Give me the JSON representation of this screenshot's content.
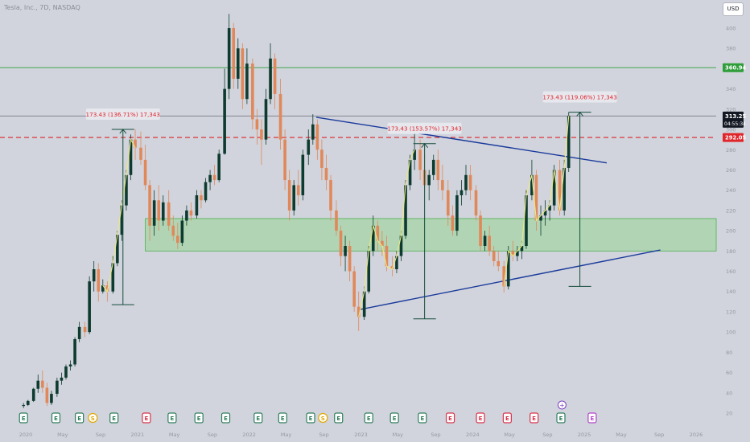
{
  "header": {
    "symbol_title": "Tesla, Inc., 7D, NASDAQ",
    "currency_label": "USD"
  },
  "chart_data": {
    "type": "candlestick",
    "title": "Tesla, Inc., 7D, NASDAQ",
    "currency": "USD",
    "ylim": [
      20,
      420
    ],
    "y_ticks": [
      20,
      40,
      60,
      80,
      100,
      120,
      140,
      160,
      180,
      200,
      220,
      240,
      260,
      280,
      300,
      320,
      340,
      360,
      380,
      400
    ],
    "x_labels": [
      "2020",
      "May",
      "Sep",
      "2021",
      "May",
      "Sep",
      "2022",
      "May",
      "Sep",
      "2023",
      "May",
      "Sep",
      "2024",
      "May",
      "Sep",
      "2025",
      "May",
      "Sep",
      "2026"
    ],
    "x_label_times": [
      2020.0,
      2020.33,
      2020.67,
      2021.0,
      2021.33,
      2021.67,
      2022.0,
      2022.33,
      2022.67,
      2023.0,
      2023.33,
      2023.67,
      2024.0,
      2024.33,
      2024.67,
      2025.0,
      2025.33,
      2025.67,
      2026.0
    ],
    "grid": false,
    "price_markers": [
      {
        "label": "360.94",
        "value": 360.94,
        "color": "#2e9d3a"
      },
      {
        "label": "313.25",
        "value": 313.25,
        "color": "#131722"
      },
      {
        "label": "292.05",
        "value": 292.05,
        "color": "#e0252b"
      }
    ],
    "countdown": "04:55:34",
    "reference_lines": [
      {
        "name": "resistance",
        "value": 360.94,
        "color": "#2e9d3a",
        "style": "solid"
      },
      {
        "name": "current",
        "value": 313.25,
        "color": "#787b86",
        "style": "solid"
      },
      {
        "name": "breakout",
        "value": 292.05,
        "color": "#e0252b",
        "style": "dashed"
      }
    ],
    "support_zone": {
      "from": 180,
      "to": 212,
      "color": "#a5d6a7"
    },
    "trendlines": [
      {
        "name": "upper",
        "points": [
          [
            2022.6,
            312
          ],
          [
            2025.2,
            267
          ]
        ],
        "color": "#1a3a9c"
      },
      {
        "name": "lower",
        "points": [
          [
            2022.98,
            122
          ],
          [
            2025.68,
            181
          ]
        ],
        "color": "#1a3a9c"
      }
    ],
    "measurements": [
      {
        "label": "173.43 (136.71%) 17,343",
        "x": 2020.87,
        "from": 127,
        "to": 300
      },
      {
        "label": "173.43 (153.57%) 17,343",
        "x": 2023.57,
        "from": 113,
        "to": 286
      },
      {
        "label": "173.43 (119.06%) 17,343",
        "x": 2024.96,
        "from": 145,
        "to": 317
      }
    ],
    "candles": [
      {
        "t": 2019.98,
        "o": 27,
        "h": 30,
        "l": 25,
        "c": 28
      },
      {
        "t": 2020.02,
        "o": 28,
        "h": 33,
        "l": 27,
        "c": 32
      },
      {
        "t": 2020.07,
        "o": 32,
        "h": 45,
        "l": 31,
        "c": 44
      },
      {
        "t": 2020.11,
        "o": 44,
        "h": 58,
        "l": 40,
        "c": 52
      },
      {
        "t": 2020.15,
        "o": 52,
        "h": 62,
        "l": 40,
        "c": 45
      },
      {
        "t": 2020.19,
        "o": 45,
        "h": 50,
        "l": 27,
        "c": 30
      },
      {
        "t": 2020.23,
        "o": 30,
        "h": 42,
        "l": 28,
        "c": 39
      },
      {
        "t": 2020.28,
        "o": 39,
        "h": 55,
        "l": 36,
        "c": 52
      },
      {
        "t": 2020.32,
        "o": 52,
        "h": 60,
        "l": 48,
        "c": 55
      },
      {
        "t": 2020.36,
        "o": 55,
        "h": 68,
        "l": 53,
        "c": 66
      },
      {
        "t": 2020.4,
        "o": 66,
        "h": 72,
        "l": 62,
        "c": 68
      },
      {
        "t": 2020.44,
        "o": 68,
        "h": 95,
        "l": 66,
        "c": 93
      },
      {
        "t": 2020.48,
        "o": 93,
        "h": 110,
        "l": 90,
        "c": 105
      },
      {
        "t": 2020.53,
        "o": 105,
        "h": 110,
        "l": 95,
        "c": 100
      },
      {
        "t": 2020.57,
        "o": 100,
        "h": 155,
        "l": 98,
        "c": 150
      },
      {
        "t": 2020.61,
        "o": 150,
        "h": 170,
        "l": 140,
        "c": 162
      },
      {
        "t": 2020.65,
        "o": 162,
        "h": 168,
        "l": 130,
        "c": 140
      },
      {
        "t": 2020.69,
        "o": 140,
        "h": 152,
        "l": 138,
        "c": 146
      },
      {
        "t": 2020.73,
        "o": 146,
        "h": 150,
        "l": 130,
        "c": 140
      },
      {
        "t": 2020.78,
        "o": 140,
        "h": 175,
        "l": 138,
        "c": 168
      },
      {
        "t": 2020.82,
        "o": 168,
        "h": 200,
        "l": 165,
        "c": 196
      },
      {
        "t": 2020.86,
        "o": 196,
        "h": 230,
        "l": 190,
        "c": 225
      },
      {
        "t": 2020.9,
        "o": 225,
        "h": 260,
        "l": 220,
        "c": 255
      },
      {
        "t": 2020.94,
        "o": 255,
        "h": 295,
        "l": 250,
        "c": 290
      },
      {
        "t": 2020.98,
        "o": 290,
        "h": 300,
        "l": 270,
        "c": 282
      },
      {
        "t": 2021.03,
        "o": 282,
        "h": 298,
        "l": 265,
        "c": 270
      },
      {
        "t": 2021.07,
        "o": 270,
        "h": 285,
        "l": 240,
        "c": 245
      },
      {
        "t": 2021.11,
        "o": 245,
        "h": 250,
        "l": 190,
        "c": 205
      },
      {
        "t": 2021.15,
        "o": 205,
        "h": 240,
        "l": 195,
        "c": 230
      },
      {
        "t": 2021.19,
        "o": 230,
        "h": 245,
        "l": 200,
        "c": 210
      },
      {
        "t": 2021.23,
        "o": 210,
        "h": 235,
        "l": 205,
        "c": 228
      },
      {
        "t": 2021.28,
        "o": 228,
        "h": 240,
        "l": 200,
        "c": 205
      },
      {
        "t": 2021.32,
        "o": 205,
        "h": 215,
        "l": 190,
        "c": 195
      },
      {
        "t": 2021.36,
        "o": 195,
        "h": 208,
        "l": 182,
        "c": 188
      },
      {
        "t": 2021.4,
        "o": 188,
        "h": 215,
        "l": 185,
        "c": 210
      },
      {
        "t": 2021.44,
        "o": 210,
        "h": 225,
        "l": 205,
        "c": 220
      },
      {
        "t": 2021.48,
        "o": 220,
        "h": 228,
        "l": 210,
        "c": 215
      },
      {
        "t": 2021.53,
        "o": 215,
        "h": 240,
        "l": 212,
        "c": 235
      },
      {
        "t": 2021.57,
        "o": 235,
        "h": 240,
        "l": 222,
        "c": 230
      },
      {
        "t": 2021.61,
        "o": 230,
        "h": 252,
        "l": 228,
        "c": 248
      },
      {
        "t": 2021.65,
        "o": 248,
        "h": 260,
        "l": 240,
        "c": 255
      },
      {
        "t": 2021.69,
        "o": 255,
        "h": 265,
        "l": 245,
        "c": 250
      },
      {
        "t": 2021.73,
        "o": 250,
        "h": 280,
        "l": 248,
        "c": 276
      },
      {
        "t": 2021.78,
        "o": 276,
        "h": 360,
        "l": 275,
        "c": 340
      },
      {
        "t": 2021.82,
        "o": 340,
        "h": 414,
        "l": 330,
        "c": 400
      },
      {
        "t": 2021.86,
        "o": 400,
        "h": 405,
        "l": 340,
        "c": 350
      },
      {
        "t": 2021.9,
        "o": 350,
        "h": 390,
        "l": 340,
        "c": 380
      },
      {
        "t": 2021.94,
        "o": 380,
        "h": 385,
        "l": 320,
        "c": 330
      },
      {
        "t": 2021.98,
        "o": 330,
        "h": 380,
        "l": 325,
        "c": 365
      },
      {
        "t": 2022.03,
        "o": 365,
        "h": 370,
        "l": 300,
        "c": 310
      },
      {
        "t": 2022.07,
        "o": 310,
        "h": 320,
        "l": 285,
        "c": 300
      },
      {
        "t": 2022.11,
        "o": 300,
        "h": 310,
        "l": 265,
        "c": 290
      },
      {
        "t": 2022.15,
        "o": 290,
        "h": 340,
        "l": 285,
        "c": 330
      },
      {
        "t": 2022.19,
        "o": 330,
        "h": 385,
        "l": 325,
        "c": 370
      },
      {
        "t": 2022.23,
        "o": 370,
        "h": 375,
        "l": 320,
        "c": 335
      },
      {
        "t": 2022.28,
        "o": 335,
        "h": 350,
        "l": 280,
        "c": 290
      },
      {
        "t": 2022.32,
        "o": 290,
        "h": 300,
        "l": 240,
        "c": 250
      },
      {
        "t": 2022.36,
        "o": 250,
        "h": 260,
        "l": 210,
        "c": 220
      },
      {
        "t": 2022.4,
        "o": 220,
        "h": 250,
        "l": 215,
        "c": 245
      },
      {
        "t": 2022.44,
        "o": 245,
        "h": 260,
        "l": 225,
        "c": 235
      },
      {
        "t": 2022.48,
        "o": 235,
        "h": 280,
        "l": 230,
        "c": 275
      },
      {
        "t": 2022.53,
        "o": 275,
        "h": 300,
        "l": 265,
        "c": 290
      },
      {
        "t": 2022.57,
        "o": 290,
        "h": 315,
        "l": 285,
        "c": 305
      },
      {
        "t": 2022.61,
        "o": 305,
        "h": 310,
        "l": 270,
        "c": 280
      },
      {
        "t": 2022.65,
        "o": 280,
        "h": 290,
        "l": 250,
        "c": 262
      },
      {
        "t": 2022.69,
        "o": 262,
        "h": 275,
        "l": 240,
        "c": 250
      },
      {
        "t": 2022.73,
        "o": 250,
        "h": 255,
        "l": 210,
        "c": 220
      },
      {
        "t": 2022.78,
        "o": 220,
        "h": 230,
        "l": 195,
        "c": 200
      },
      {
        "t": 2022.82,
        "o": 200,
        "h": 205,
        "l": 165,
        "c": 175
      },
      {
        "t": 2022.86,
        "o": 175,
        "h": 195,
        "l": 160,
        "c": 185
      },
      {
        "t": 2022.9,
        "o": 185,
        "h": 190,
        "l": 150,
        "c": 160
      },
      {
        "t": 2022.94,
        "o": 160,
        "h": 165,
        "l": 120,
        "c": 125
      },
      {
        "t": 2022.98,
        "o": 125,
        "h": 140,
        "l": 101,
        "c": 115
      },
      {
        "t": 2023.03,
        "o": 115,
        "h": 145,
        "l": 112,
        "c": 140
      },
      {
        "t": 2023.07,
        "o": 140,
        "h": 185,
        "l": 138,
        "c": 180
      },
      {
        "t": 2023.11,
        "o": 180,
        "h": 215,
        "l": 175,
        "c": 205
      },
      {
        "t": 2023.15,
        "o": 205,
        "h": 210,
        "l": 180,
        "c": 190
      },
      {
        "t": 2023.19,
        "o": 190,
        "h": 200,
        "l": 175,
        "c": 185
      },
      {
        "t": 2023.23,
        "o": 185,
        "h": 195,
        "l": 160,
        "c": 165
      },
      {
        "t": 2023.28,
        "o": 165,
        "h": 175,
        "l": 155,
        "c": 162
      },
      {
        "t": 2023.32,
        "o": 162,
        "h": 180,
        "l": 158,
        "c": 175
      },
      {
        "t": 2023.36,
        "o": 175,
        "h": 200,
        "l": 170,
        "c": 195
      },
      {
        "t": 2023.4,
        "o": 195,
        "h": 250,
        "l": 192,
        "c": 245
      },
      {
        "t": 2023.44,
        "o": 245,
        "h": 275,
        "l": 240,
        "c": 270
      },
      {
        "t": 2023.48,
        "o": 270,
        "h": 299,
        "l": 260,
        "c": 280
      },
      {
        "t": 2023.53,
        "o": 280,
        "h": 290,
        "l": 250,
        "c": 260
      },
      {
        "t": 2023.57,
        "o": 260,
        "h": 275,
        "l": 240,
        "c": 245
      },
      {
        "t": 2023.61,
        "o": 245,
        "h": 260,
        "l": 230,
        "c": 255
      },
      {
        "t": 2023.65,
        "o": 255,
        "h": 275,
        "l": 250,
        "c": 270
      },
      {
        "t": 2023.69,
        "o": 270,
        "h": 280,
        "l": 240,
        "c": 250
      },
      {
        "t": 2023.73,
        "o": 250,
        "h": 265,
        "l": 230,
        "c": 240
      },
      {
        "t": 2023.78,
        "o": 240,
        "h": 250,
        "l": 205,
        "c": 215
      },
      {
        "t": 2023.82,
        "o": 215,
        "h": 225,
        "l": 195,
        "c": 200
      },
      {
        "t": 2023.86,
        "o": 200,
        "h": 240,
        "l": 195,
        "c": 235
      },
      {
        "t": 2023.9,
        "o": 235,
        "h": 250,
        "l": 225,
        "c": 240
      },
      {
        "t": 2023.94,
        "o": 240,
        "h": 265,
        "l": 235,
        "c": 255
      },
      {
        "t": 2023.98,
        "o": 255,
        "h": 265,
        "l": 230,
        "c": 240
      },
      {
        "t": 2024.03,
        "o": 240,
        "h": 245,
        "l": 210,
        "c": 215
      },
      {
        "t": 2024.07,
        "o": 215,
        "h": 220,
        "l": 180,
        "c": 185
      },
      {
        "t": 2024.11,
        "o": 185,
        "h": 200,
        "l": 180,
        "c": 195
      },
      {
        "t": 2024.15,
        "o": 195,
        "h": 205,
        "l": 175,
        "c": 180
      },
      {
        "t": 2024.19,
        "o": 180,
        "h": 185,
        "l": 165,
        "c": 170
      },
      {
        "t": 2024.23,
        "o": 170,
        "h": 180,
        "l": 160,
        "c": 165
      },
      {
        "t": 2024.28,
        "o": 165,
        "h": 170,
        "l": 139,
        "c": 145
      },
      {
        "t": 2024.32,
        "o": 145,
        "h": 185,
        "l": 142,
        "c": 180
      },
      {
        "t": 2024.36,
        "o": 180,
        "h": 190,
        "l": 170,
        "c": 175
      },
      {
        "t": 2024.4,
        "o": 175,
        "h": 185,
        "l": 170,
        "c": 180
      },
      {
        "t": 2024.44,
        "o": 180,
        "h": 190,
        "l": 172,
        "c": 185
      },
      {
        "t": 2024.48,
        "o": 185,
        "h": 240,
        "l": 182,
        "c": 235
      },
      {
        "t": 2024.53,
        "o": 235,
        "h": 270,
        "l": 230,
        "c": 255
      },
      {
        "t": 2024.57,
        "o": 255,
        "h": 260,
        "l": 200,
        "c": 210
      },
      {
        "t": 2024.61,
        "o": 210,
        "h": 225,
        "l": 195,
        "c": 215
      },
      {
        "t": 2024.65,
        "o": 215,
        "h": 230,
        "l": 205,
        "c": 220
      },
      {
        "t": 2024.69,
        "o": 220,
        "h": 230,
        "l": 210,
        "c": 225
      },
      {
        "t": 2024.73,
        "o": 225,
        "h": 265,
        "l": 220,
        "c": 260
      },
      {
        "t": 2024.78,
        "o": 260,
        "h": 270,
        "l": 215,
        "c": 220
      },
      {
        "t": 2024.82,
        "o": 220,
        "h": 270,
        "l": 215,
        "c": 262
      },
      {
        "t": 2024.86,
        "o": 262,
        "h": 317,
        "l": 258,
        "c": 313.25
      }
    ],
    "events": [
      {
        "t": 2019.98,
        "label": "E",
        "kind": "earnings"
      },
      {
        "t": 2020.27,
        "label": "E",
        "kind": "earnings"
      },
      {
        "t": 2020.48,
        "label": "E",
        "kind": "earnings"
      },
      {
        "t": 2020.6,
        "label": "S",
        "kind": "split"
      },
      {
        "t": 2020.79,
        "label": "E",
        "kind": "earnings"
      },
      {
        "t": 2021.08,
        "label": "E",
        "kind": "earnings-miss"
      },
      {
        "t": 2021.31,
        "label": "E",
        "kind": "earnings"
      },
      {
        "t": 2021.55,
        "label": "E",
        "kind": "earnings"
      },
      {
        "t": 2021.79,
        "label": "E",
        "kind": "earnings"
      },
      {
        "t": 2022.08,
        "label": "E",
        "kind": "earnings"
      },
      {
        "t": 2022.3,
        "label": "E",
        "kind": "earnings"
      },
      {
        "t": 2022.55,
        "label": "E",
        "kind": "earnings"
      },
      {
        "t": 2022.66,
        "label": "S",
        "kind": "split"
      },
      {
        "t": 2022.8,
        "label": "E",
        "kind": "earnings"
      },
      {
        "t": 2023.07,
        "label": "E",
        "kind": "earnings"
      },
      {
        "t": 2023.3,
        "label": "E",
        "kind": "earnings"
      },
      {
        "t": 2023.55,
        "label": "E",
        "kind": "earnings"
      },
      {
        "t": 2023.8,
        "label": "E",
        "kind": "earnings-miss"
      },
      {
        "t": 2024.07,
        "label": "E",
        "kind": "earnings-miss"
      },
      {
        "t": 2024.31,
        "label": "E",
        "kind": "earnings-miss"
      },
      {
        "t": 2024.55,
        "label": "E",
        "kind": "earnings-miss"
      },
      {
        "t": 2024.79,
        "label": "E",
        "kind": "earnings"
      },
      {
        "t": 2025.07,
        "label": "E",
        "kind": "upcoming"
      }
    ],
    "colors": {
      "up": "#0e3b30",
      "down": "#e0885a",
      "background": "#d1d4dc",
      "axis_text": "#9598a1",
      "trend": "#1a3a9c",
      "measure": "#164d3c",
      "label_text": "#e0252b",
      "yellow_path": "#ede87d"
    }
  }
}
